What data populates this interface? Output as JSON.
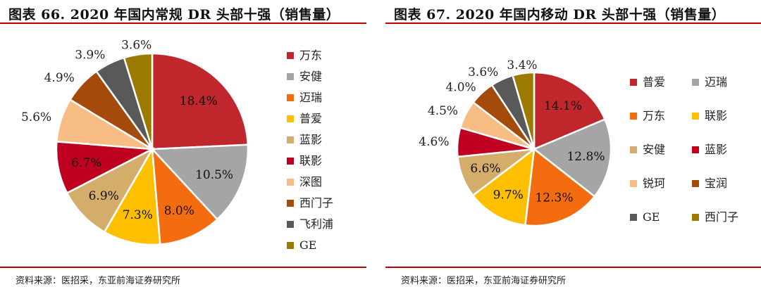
{
  "chart_data": [
    {
      "type": "pie",
      "title": "图表 66. 2020 年国内常规 DR 头部十强（销售量）",
      "categories": [
        "万东",
        "安健",
        "迈瑞",
        "普爱",
        "蓝影",
        "联影",
        "深图",
        "西门子",
        "飞利浦",
        "GE"
      ],
      "values": [
        18.4,
        10.5,
        8.0,
        7.3,
        6.9,
        6.7,
        5.6,
        4.9,
        3.9,
        3.6
      ],
      "value_labels": [
        "18.4%",
        "10.5%",
        "8.0%",
        "7.3%",
        "6.9%",
        "6.7%",
        "5.6%",
        "4.9%",
        "3.9%",
        "3.6%"
      ],
      "colors": [
        "#c0272d",
        "#a5a5a5",
        "#f36c0f",
        "#fdbf00",
        "#d4ad6a",
        "#c00020",
        "#f7bd84",
        "#a44b0c",
        "#595959",
        "#9c7a00"
      ],
      "legend_position": "right",
      "source": "资料来源：医招采，东亚前海证券研究所"
    },
    {
      "type": "pie",
      "title": "图表 67. 2020 年国内移动 DR 头部十强（销售量）",
      "categories": [
        "普爱",
        "迈瑞",
        "万东",
        "联影",
        "安健",
        "蓝影",
        "锐珂",
        "宝润",
        "GE",
        "西门子"
      ],
      "values": [
        14.1,
        12.8,
        12.3,
        9.7,
        6.6,
        4.6,
        4.5,
        4.0,
        3.6,
        3.4
      ],
      "value_labels": [
        "14.1%",
        "12.8%",
        "12.3%",
        "9.7%",
        "6.6%",
        "4.6%",
        "4.5%",
        "4.0%",
        "3.6%",
        "3.4%"
      ],
      "colors": [
        "#c0272d",
        "#a5a5a5",
        "#f36c0f",
        "#fdbf00",
        "#d4ad6a",
        "#c00020",
        "#f7bd84",
        "#a44b0c",
        "#595959",
        "#9c7a00"
      ],
      "legend_position": "right",
      "source": "资料来源：医招采，东亚前海证券研究所"
    }
  ]
}
